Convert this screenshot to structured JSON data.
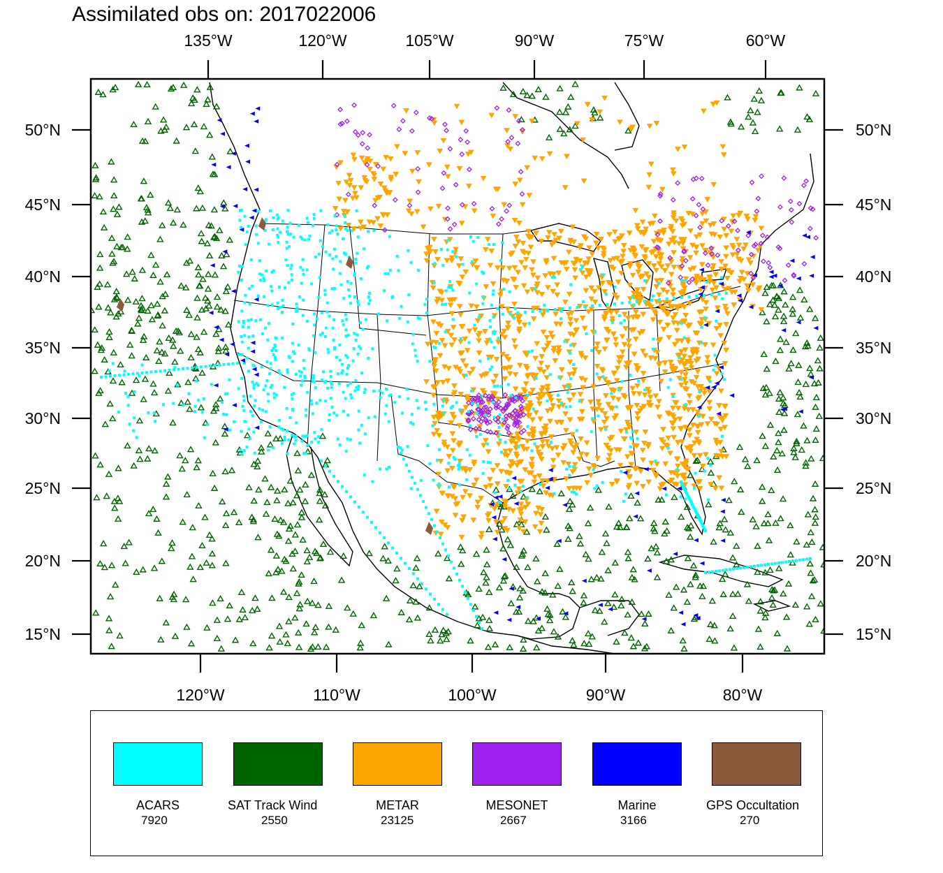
{
  "title": "Assimilated obs on: 2017022006",
  "colors": {
    "acars": "#00ffff",
    "sat_track_wind": "#006400",
    "metar": "#ffa500",
    "mesonet": "#a020f0",
    "marine": "#0000ff",
    "gps_occultation": "#8b5a3c"
  },
  "axes": {
    "top_lon_ticks": [
      "135°W",
      "120°W",
      "105°W",
      "90°W",
      "75°W",
      "60°W"
    ],
    "bottom_lon_ticks": [
      "120°W",
      "110°W",
      "100°W",
      "90°W",
      "80°W"
    ],
    "lat_ticks": [
      "50°N",
      "45°N",
      "40°N",
      "35°N",
      "30°N",
      "25°N",
      "20°N",
      "15°N"
    ]
  },
  "legend": [
    {
      "key": "acars",
      "label": "ACARS",
      "count": "7920",
      "icon": "square-icon"
    },
    {
      "key": "sat_track_wind",
      "label": "SAT Track Wind",
      "count": "2550",
      "icon": "triangle-up-icon"
    },
    {
      "key": "metar",
      "label": "METAR",
      "count": "23125",
      "icon": "triangle-down-icon"
    },
    {
      "key": "mesonet",
      "label": "MESONET",
      "count": "2667",
      "icon": "diamond-icon"
    },
    {
      "key": "marine",
      "label": "Marine",
      "count": "3166",
      "icon": "triangle-left-icon"
    },
    {
      "key": "gps_occultation",
      "label": "GPS Occultation",
      "count": "270",
      "icon": "polygon-icon"
    }
  ]
}
